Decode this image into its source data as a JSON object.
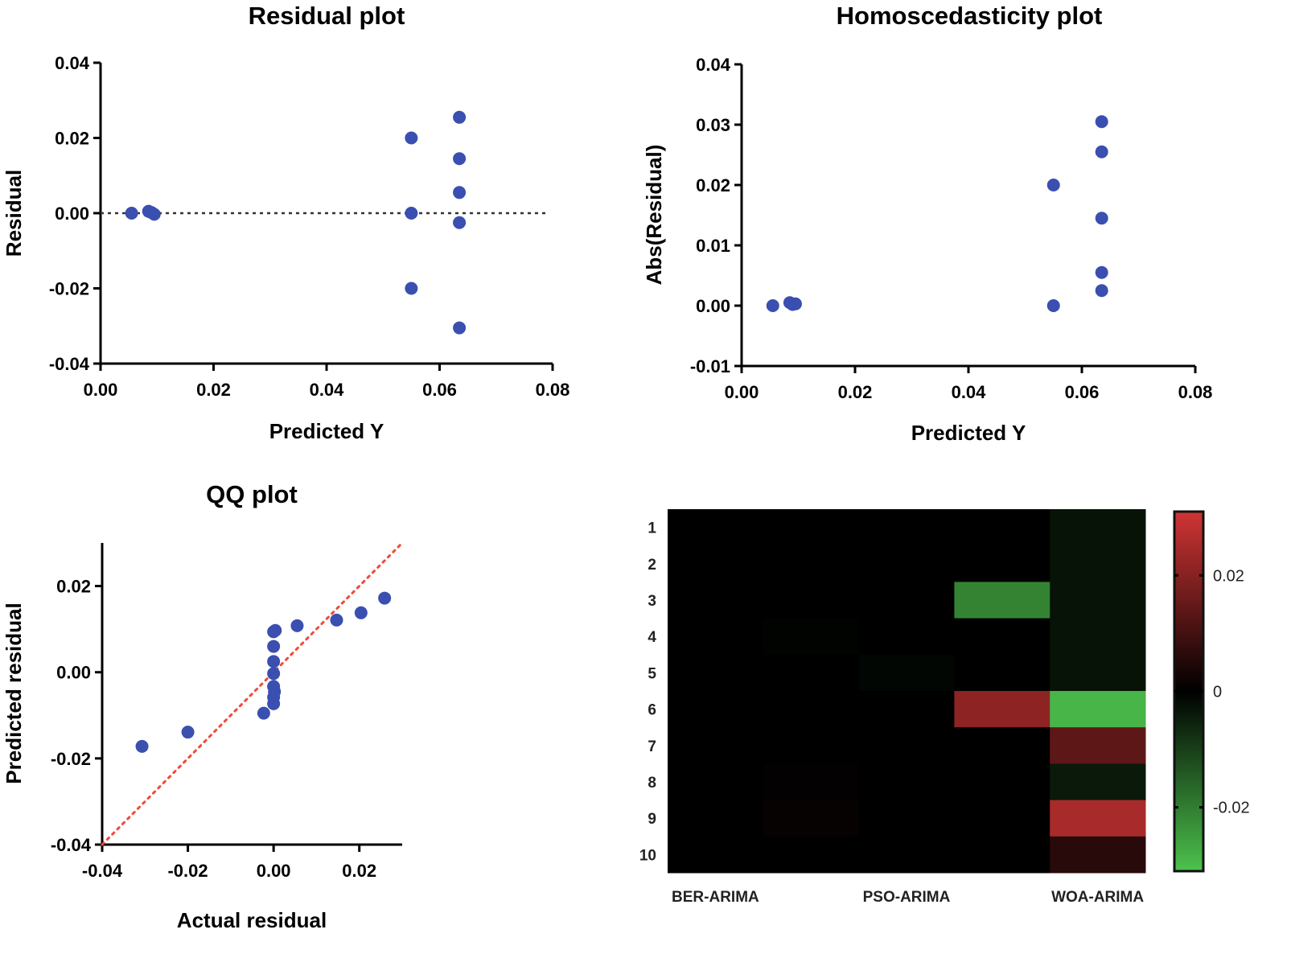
{
  "chart_data": [
    {
      "type": "scatter",
      "title": "Residual plot",
      "xlabel": "Predicted Y",
      "ylabel": "Residual",
      "xlim": [
        0,
        0.08
      ],
      "ylim": [
        -0.04,
        0.04
      ],
      "xticks": [
        "0.00",
        "0.02",
        "0.04",
        "0.06",
        "0.08"
      ],
      "yticks": [
        "-0.04",
        "-0.02",
        "0.00",
        "0.02",
        "0.04"
      ],
      "reference_line": {
        "y": 0,
        "style": "dotted",
        "color": "#333333"
      },
      "point_color": "#3a4fb0",
      "points": [
        [
          0.0055,
          0
        ],
        [
          0.0085,
          0.0005
        ],
        [
          0.009,
          0.0002
        ],
        [
          0.0095,
          -0.0003
        ],
        [
          0.055,
          0.02
        ],
        [
          0.055,
          0
        ],
        [
          0.055,
          -0.02
        ],
        [
          0.0635,
          0.0255
        ],
        [
          0.0635,
          0.0145
        ],
        [
          0.0635,
          0.0055
        ],
        [
          0.0635,
          -0.0025
        ],
        [
          0.0635,
          -0.0305
        ]
      ]
    },
    {
      "type": "scatter",
      "title": "Homoscedasticity plot",
      "xlabel": "Predicted Y",
      "ylabel": "Abs(Residual)",
      "xlim": [
        0,
        0.08
      ],
      "ylim": [
        -0.01,
        0.04
      ],
      "xticks": [
        "0.00",
        "0.02",
        "0.04",
        "0.06",
        "0.08"
      ],
      "yticks": [
        "-0.01",
        "0.00",
        "0.01",
        "0.02",
        "0.03",
        "0.04"
      ],
      "point_color": "#3a4fb0",
      "points": [
        [
          0.0055,
          0
        ],
        [
          0.0085,
          0.0005
        ],
        [
          0.009,
          0.0002
        ],
        [
          0.0095,
          0.0003
        ],
        [
          0.055,
          0.02
        ],
        [
          0.055,
          0
        ],
        [
          0.0635,
          0.0305
        ],
        [
          0.0635,
          0.0255
        ],
        [
          0.0635,
          0.0145
        ],
        [
          0.0635,
          0.0055
        ],
        [
          0.0635,
          0.0025
        ]
      ]
    },
    {
      "type": "scatter",
      "title": "QQ plot",
      "xlabel": "Actual residual",
      "ylabel": "Predicted residual",
      "xlim": [
        -0.04,
        0.03
      ],
      "ylim": [
        -0.04,
        0.03
      ],
      "xticks": [
        "-0.04",
        "-0.02",
        "0.00",
        "0.02"
      ],
      "yticks": [
        "-0.04",
        "-0.02",
        "0.00",
        "0.02"
      ],
      "reference_line": {
        "from": [
          -0.04,
          -0.04
        ],
        "to": [
          0.03,
          0.03
        ],
        "style": "dotted",
        "color": "#f04a3a"
      },
      "point_color": "#3a4fb0",
      "points": [
        [
          -0.0307,
          -0.0172
        ],
        [
          -0.02,
          -0.0139
        ],
        [
          -0.0023,
          -0.0095
        ],
        [
          0,
          -0.0073
        ],
        [
          0,
          -0.0058
        ],
        [
          0.0002,
          -0.0045
        ],
        [
          0,
          -0.0033
        ],
        [
          0,
          -0.0003
        ],
        [
          0,
          0.0025
        ],
        [
          0,
          0.006
        ],
        [
          0,
          0.0094
        ],
        [
          0.0004,
          0.0097
        ],
        [
          0.0055,
          0.0108
        ],
        [
          0.0147,
          0.0121
        ],
        [
          0.0204,
          0.0138
        ],
        [
          0.0259,
          0.0172
        ]
      ]
    },
    {
      "type": "heatmap",
      "row_labels": [
        "1",
        "2",
        "3",
        "4",
        "5",
        "6",
        "7",
        "8",
        "9",
        "10"
      ],
      "column_labels": [
        "BER-ARIMA",
        "",
        "PSO-ARIMA",
        "",
        "WOA-ARIMA"
      ],
      "color_range": [
        -0.031,
        0.031
      ],
      "colorbar_ticks": [
        "0.02",
        "0",
        "-0.02"
      ],
      "colorbar_tick_values": [
        0.02,
        0,
        -0.02
      ],
      "colors": {
        "positive": "#d03434",
        "zero": "#000000",
        "negative": "#4cc24c"
      },
      "values": [
        [
          0,
          0,
          0,
          0,
          -0.003
        ],
        [
          0,
          0,
          0,
          0,
          -0.003
        ],
        [
          0,
          0,
          0,
          -0.021,
          -0.003
        ],
        [
          0,
          -0.0005,
          0,
          0,
          -0.003
        ],
        [
          0,
          0,
          -0.001,
          0,
          -0.003
        ],
        [
          0,
          0,
          0,
          0.021,
          -0.029
        ],
        [
          0,
          0,
          0,
          0,
          0.014
        ],
        [
          0,
          0.0005,
          0,
          0,
          -0.004
        ],
        [
          0,
          0.001,
          0,
          0,
          0.025
        ],
        [
          0,
          0,
          0,
          0,
          0.006
        ]
      ]
    }
  ]
}
